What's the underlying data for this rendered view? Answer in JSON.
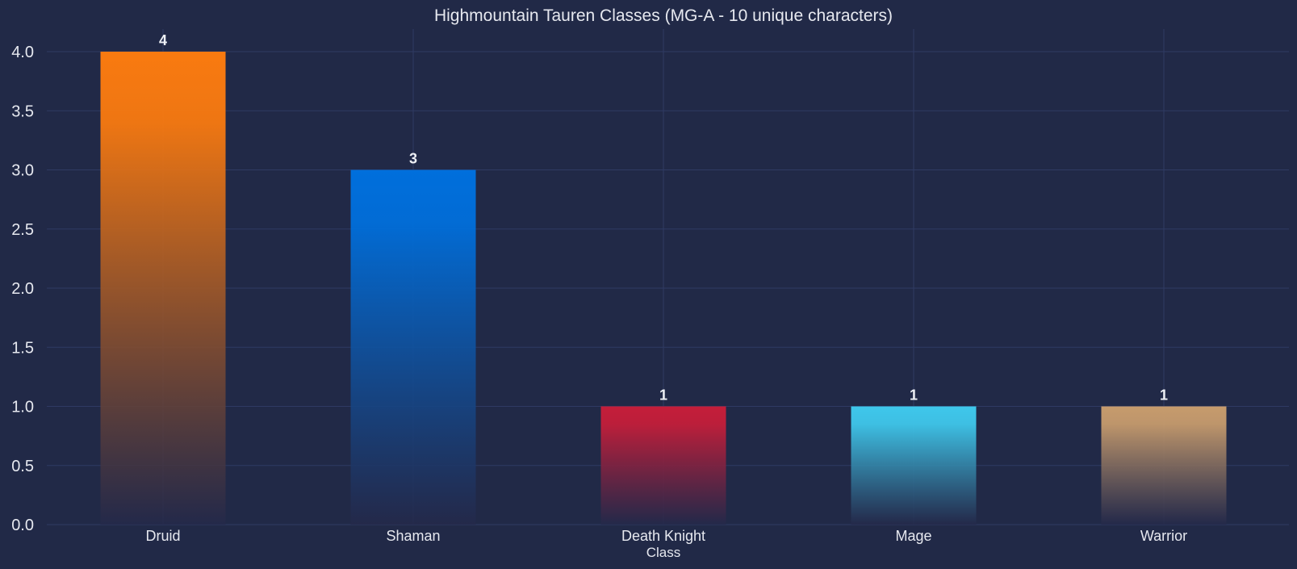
{
  "chart_data": {
    "type": "bar",
    "title": "Highmountain Tauren Classes (MG-A - 10 unique characters)",
    "xlabel": "Class",
    "ylabel": "",
    "categories": [
      "Druid",
      "Shaman",
      "Death Knight",
      "Mage",
      "Warrior"
    ],
    "values": [
      4,
      3,
      1,
      1,
      1
    ],
    "value_labels": [
      "4",
      "3",
      "1",
      "1",
      "1"
    ],
    "ylim": [
      0,
      4.2
    ],
    "yticks": [
      0.0,
      0.5,
      1.0,
      1.5,
      2.0,
      2.5,
      3.0,
      3.5,
      4.0
    ],
    "ytick_labels": [
      "0.0",
      "0.5",
      "1.0",
      "1.5",
      "2.0",
      "2.5",
      "3.0",
      "3.5",
      "4.0"
    ],
    "grid": true,
    "legend": "none",
    "colors": {
      "background": "#212947",
      "grid": "#2f3a63",
      "text": "#e6e8ef",
      "bars": [
        "#f97a10",
        "#006fdc",
        "#c41e3a",
        "#3fc7eb",
        "#c69b6d"
      ],
      "bar_fade": "#24294a"
    }
  }
}
